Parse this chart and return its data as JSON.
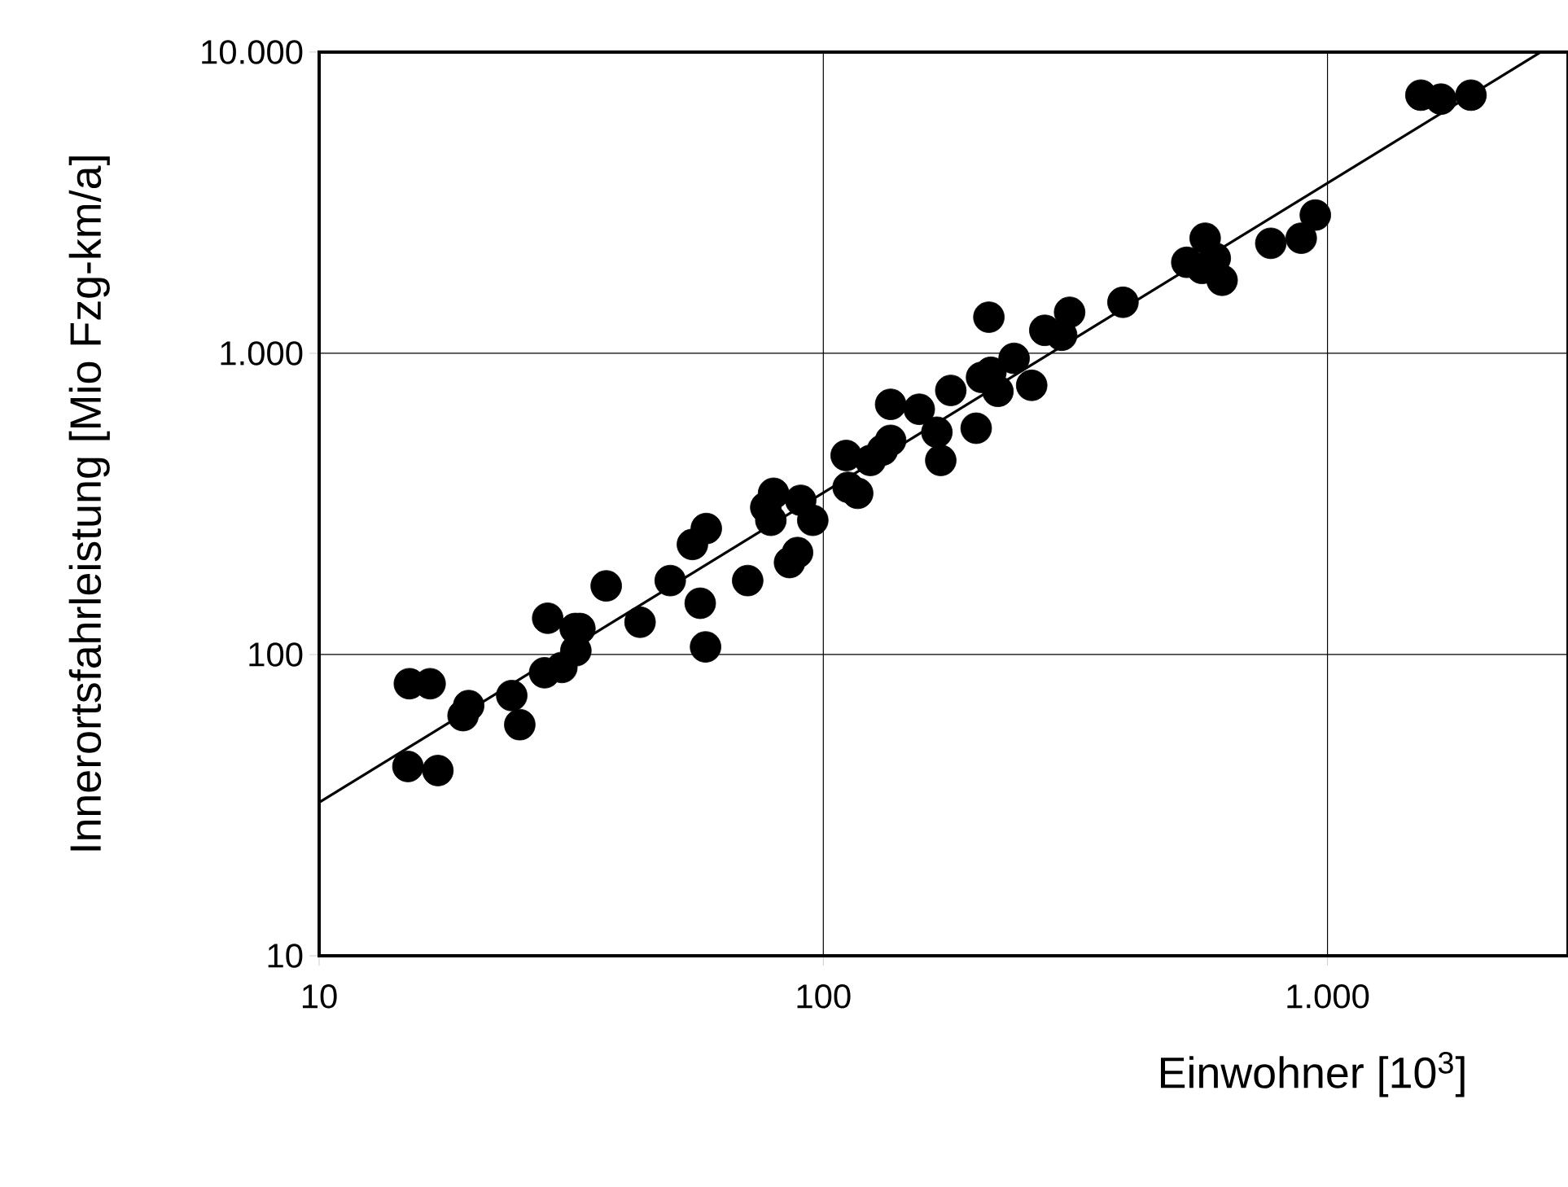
{
  "chart_data": {
    "type": "scatter",
    "xlabel": "Einwohner [10$^{3}$]",
    "ylabel": "Innerortsfahrleistung [Mio Fzg-km/a]",
    "log": "xy",
    "grid": true,
    "xlim": [
      10,
      3000
    ],
    "ylim": [
      10,
      10000
    ],
    "xticks": [
      10,
      100,
      {
        "value": 1000,
        "label": "1.000"
      }
    ],
    "yticks": [
      10,
      100,
      {
        "value": 1000,
        "label": "1.000"
      },
      {
        "value": 10000,
        "label": "10.000"
      }
    ],
    "series": [
      {
        "color": "#000000",
        "marker": "circle",
        "x": [
          15.1,
          16.6,
          15.0,
          17.2,
          19.3,
          19.8,
          24.1,
          25.0,
          28.4,
          28.0,
          30.3,
          32.2,
          32.9,
          32.3,
          37.1,
          43.3,
          49.7,
          55.0,
          58.6,
          57.0,
          58.4,
          70.8,
          76.9,
          79.7,
          78.7,
          90.2,
          95.3,
          85.7,
          88.9,
          111,
          112,
          117,
          124,
          131,
          136,
          136,
          155,
          168,
          171,
          179,
          201,
          206,
          215,
          222,
          213,
          239,
          259,
          275,
          297,
          308,
          393,
          526,
          564,
          572,
          599,
          618,
          772,
          887,
          946,
          1532,
          1679,
          1926
        ],
        "values": [
          80,
          80,
          42.5,
          41.2,
          62.7,
          67.7,
          73.1,
          58.5,
          132,
          87,
          90.6,
          122,
          122,
          103,
          169,
          128,
          176,
          232,
          262,
          148,
          106,
          176,
          308,
          343,
          279,
          325,
          279,
          202,
          218,
          458,
          359,
          343,
          441,
          477,
          514,
          677,
          652,
          547,
          441,
          753,
          564,
          832,
          865,
          748,
          1318,
          962,
          783,
          1192,
          1148,
          1368,
          1477,
          2005,
          1914,
          2410,
          2068,
          1748,
          2318,
          2410,
          2877,
          7195,
          6980,
          7195
        ]
      },
      {
        "type": "line",
        "color": "#000000",
        "marker": "none",
        "x": [
          10,
          2650
        ],
        "values": [
          32.3,
          10000
        ]
      }
    ]
  }
}
